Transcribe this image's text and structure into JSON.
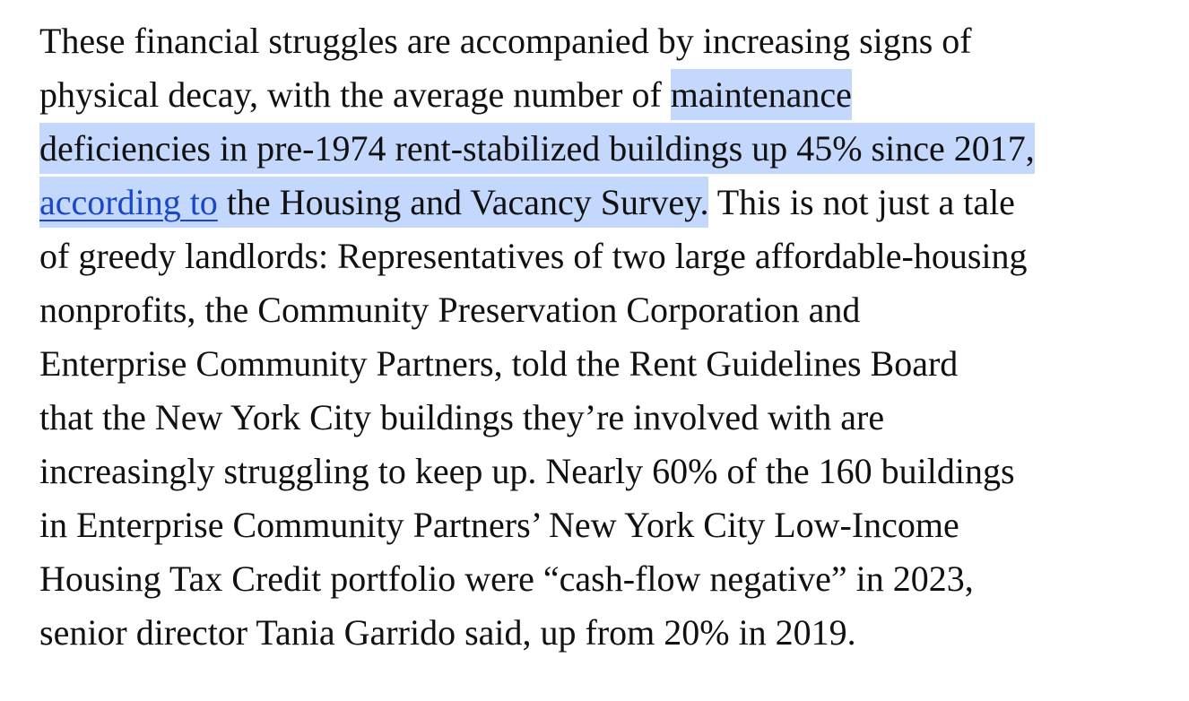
{
  "paragraph": {
    "line1": "These financial struggles are accompanied by increasing signs of",
    "line2_plain": "physical decay, with the average number of ",
    "line2_highlight": "maintenance",
    "line3_highlight": "deficiencies in pre-1974 rent-stabilized buildings up 45% since 2017,",
    "line4_link": "according to",
    "line4_highlight": " the Housing and Vacancy Survey.",
    "line4_plain": " This is not just a tale",
    "line5": "of greedy landlords: Representatives of two large affordable-housing",
    "line6": "nonprofits, the Community Preservation Corporation and",
    "line7": "Enterprise Community Partners, told the Rent Guidelines Board",
    "line8": "that the New York City buildings they’re involved with are",
    "line9": "increasingly struggling to keep up. Nearly 60% of the 160 buildings",
    "line10": "in Enterprise Community Partners’ New York City Low-Income",
    "line11": "Housing Tax Credit portfolio were “cash-flow negative” in 2023,",
    "line12": "senior director Tania Garrido said, up from 20% in 2019."
  },
  "colors": {
    "text": "#111111",
    "selection_highlight": "#c4d7fc",
    "link": "#1a47c8",
    "background": "#ffffff"
  }
}
